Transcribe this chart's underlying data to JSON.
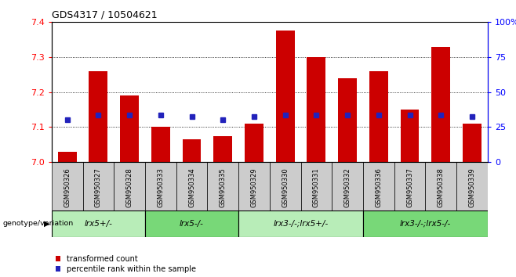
{
  "title": "GDS4317 / 10504621",
  "samples": [
    "GSM950326",
    "GSM950327",
    "GSM950328",
    "GSM950333",
    "GSM950334",
    "GSM950335",
    "GSM950329",
    "GSM950330",
    "GSM950331",
    "GSM950332",
    "GSM950336",
    "GSM950337",
    "GSM950338",
    "GSM950339"
  ],
  "red_values": [
    7.03,
    7.26,
    7.19,
    7.1,
    7.065,
    7.075,
    7.11,
    7.375,
    7.3,
    7.24,
    7.26,
    7.15,
    7.33,
    7.11
  ],
  "blue_values": [
    7.12,
    7.135,
    7.135,
    7.135,
    7.13,
    7.12,
    7.13,
    7.135,
    7.135,
    7.135,
    7.135,
    7.135,
    7.135,
    7.13
  ],
  "groups": [
    {
      "label": "lrx5+/-",
      "start": 0,
      "end": 3,
      "color": "#b8edb8"
    },
    {
      "label": "lrx5-/-",
      "start": 3,
      "end": 6,
      "color": "#78d878"
    },
    {
      "label": "lrx3-/-;lrx5+/-",
      "start": 6,
      "end": 10,
      "color": "#b8edb8"
    },
    {
      "label": "lrx3-/-;lrx5-/-",
      "start": 10,
      "end": 14,
      "color": "#78d878"
    }
  ],
  "ymin": 7.0,
  "ymax": 7.4,
  "yticks": [
    7.0,
    7.1,
    7.2,
    7.3,
    7.4
  ],
  "right_yticks": [
    0,
    25,
    50,
    75,
    100
  ],
  "bar_color": "#cc0000",
  "blue_color": "#2222bb",
  "legend_red": "transformed count",
  "legend_blue": "percentile rank within the sample"
}
